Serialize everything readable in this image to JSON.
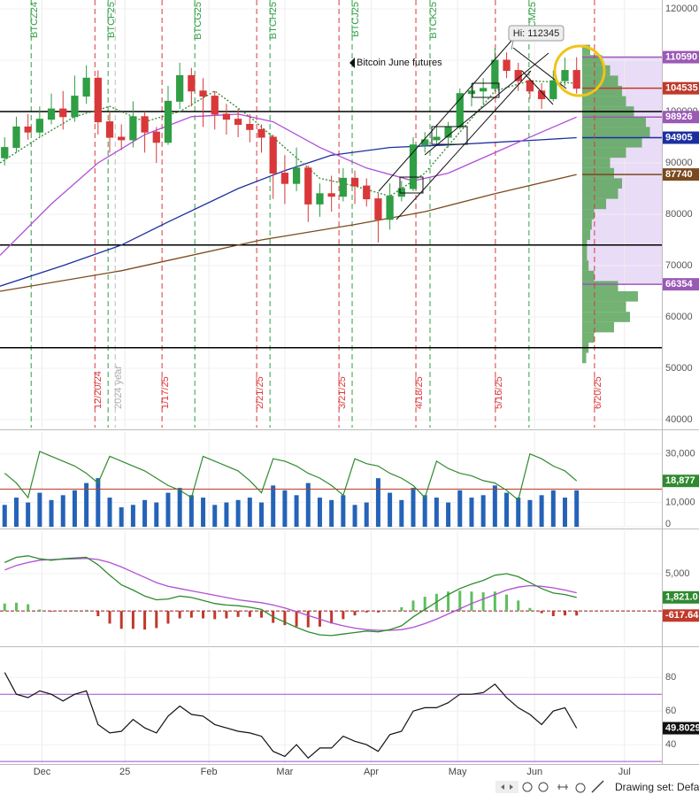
{
  "chart_data": [
    {
      "type": "candlestick",
      "xlim": [
        -0.4,
        56.3
      ],
      "xticks": [
        {
          "value": 3.2,
          "label": "Dec"
        },
        {
          "value": 10.3,
          "label": "25"
        },
        {
          "value": 17.5,
          "label": "Feb"
        },
        {
          "value": 24,
          "label": "Mar"
        },
        {
          "value": 31.4,
          "label": "Apr"
        },
        {
          "value": 38.8,
          "label": "May"
        },
        {
          "value": 45.4,
          "label": "Jun"
        },
        {
          "value": 53.1,
          "label": "Jul"
        }
      ],
      "ylim": [
        38450,
        121720
      ],
      "yticks": [
        40000,
        50000,
        60000,
        70000,
        80000,
        90000,
        100000,
        110000,
        120000
      ],
      "grid": true,
      "up_color": "#2f9e44",
      "down_color": "#d9383a",
      "open": [
        91000,
        93000,
        97000,
        96000,
        98500,
        100500,
        99000,
        103000,
        106500,
        98000,
        95000,
        94500,
        99000,
        96000,
        94000,
        102000,
        107000,
        104000,
        103000,
        99500,
        98500,
        97500,
        96500,
        95000,
        88000,
        86000,
        89000,
        82000,
        84000,
        83500,
        87000,
        85500,
        83000,
        79000,
        83500,
        85000,
        93500,
        94500,
        95000,
        97000,
        103500,
        104000,
        104500,
        110000,
        108000,
        106000,
        104000,
        102500,
        106000,
        108000
      ],
      "high": [
        95000,
        99000,
        99500,
        101000,
        103500,
        104000,
        107000,
        109000,
        108000,
        100000,
        97500,
        102000,
        100000,
        97000,
        105000,
        109500,
        108500,
        106500,
        104000,
        101500,
        100500,
        99500,
        97500,
        95500,
        91500,
        93000,
        89500,
        86000,
        87500,
        89000,
        88500,
        87000,
        84000,
        86000,
        86500,
        95000,
        96000,
        97500,
        98000,
        104500,
        105500,
        106500,
        112345,
        111500,
        109500,
        106500,
        105500,
        108000,
        110500,
        110590
      ],
      "low": [
        89500,
        92000,
        94500,
        95000,
        97500,
        96500,
        98000,
        101500,
        95500,
        92000,
        92500,
        93000,
        92000,
        90000,
        93500,
        100500,
        101000,
        97000,
        96500,
        95500,
        95000,
        94000,
        92000,
        83000,
        82000,
        84500,
        78500,
        79500,
        80500,
        82500,
        82000,
        81500,
        74500,
        77000,
        82500,
        84500,
        92000,
        93500,
        93000,
        96500,
        101000,
        101500,
        104000,
        106500,
        104000,
        102500,
        100500,
        102000,
        105000,
        103500
      ],
      "close": [
        93000,
        97000,
        96000,
        98500,
        100500,
        99000,
        103000,
        106500,
        98000,
        95000,
        94500,
        99000,
        96000,
        94000,
        102000,
        107000,
        104000,
        103000,
        99500,
        98500,
        97500,
        96500,
        95000,
        88000,
        86000,
        89000,
        82000,
        84000,
        83500,
        87000,
        85500,
        83000,
        79000,
        83500,
        85000,
        93500,
        94500,
        95000,
        97000,
        103500,
        104000,
        104500,
        110000,
        108000,
        106000,
        104000,
        102500,
        106000,
        108000,
        104535
      ],
      "overlays": [
        {
          "color": "#1c2fa0",
          "style": "solid",
          "x": [
            -0.4,
            5,
            10,
            14,
            20,
            24,
            28,
            33,
            38,
            42,
            46,
            49
          ],
          "values": [
            66000,
            70000,
            74000,
            78500,
            85000,
            88500,
            91500,
            93000,
            93500,
            94000,
            94500,
            94905
          ]
        },
        {
          "color": "#7a4a1e",
          "style": "solid",
          "x": [
            -0.4,
            10,
            22,
            30,
            36,
            42,
            49
          ],
          "values": [
            65000,
            69000,
            75000,
            78000,
            80500,
            84000,
            87740
          ]
        },
        {
          "color": "#b04fd6",
          "style": "solid",
          "x": [
            -0.4,
            4,
            8,
            12,
            16,
            20,
            23,
            27,
            31,
            35,
            38,
            42,
            46,
            49
          ],
          "values": [
            72000,
            82000,
            90000,
            95500,
            99000,
            99500,
            98000,
            93000,
            89000,
            86500,
            88000,
            92000,
            96000,
            98926
          ]
        },
        {
          "color": "#2f8a2f",
          "style": "dotted",
          "x": [
            -0.4,
            3,
            6,
            9,
            12,
            15,
            18,
            21,
            24,
            27,
            30,
            33,
            36,
            39,
            42,
            45,
            49
          ],
          "values": [
            90000,
            95000,
            99000,
            101000,
            98000,
            100000,
            104000,
            99000,
            93000,
            87000,
            85500,
            83500,
            88000,
            96000,
            104000,
            106000,
            105500
          ]
        }
      ],
      "hlines": [
        {
          "value": 100000,
          "color": "#000000"
        },
        {
          "value": 74000,
          "color": "#000000"
        },
        {
          "value": 54000,
          "color": "#000000"
        }
      ],
      "price_labels": [
        {
          "value": 110590,
          "color": "#9b59b6"
        },
        {
          "value": 104535,
          "color": "#c0392b"
        },
        {
          "value": 98926,
          "color": "#9b59b6"
        },
        {
          "value": 94905,
          "color": "#1c2fa0"
        },
        {
          "value": 87740,
          "color": "#7a4a1e"
        },
        {
          "value": 66354,
          "color": "#9b59b6"
        }
      ],
      "expiry_color": "#2f9e44",
      "expiries": [
        {
          "label": "BTCZ24",
          "x": 2.27
        },
        {
          "label": "BTCF25",
          "x": 8.86
        },
        {
          "label": "BTCG25",
          "x": 16.29
        },
        {
          "label": "BTCH25",
          "x": 22.73
        },
        {
          "label": "BTCJ25",
          "x": 29.77
        },
        {
          "label": "BTCK25",
          "x": 36.44
        },
        {
          "label": "BTCM25",
          "x": 44.92
        }
      ],
      "roll_color": "#d9383a",
      "rolls": [
        {
          "label": "12/20/24",
          "x": 7.73
        },
        {
          "label": "2024 year",
          "x": 9.47
        },
        {
          "label": "1/17/25",
          "x": 13.48
        },
        {
          "label": "2/21/25",
          "x": 21.59
        },
        {
          "label": "3/21/25",
          "x": 28.64
        },
        {
          "label": "4/18/25",
          "x": 35.23
        },
        {
          "label": "5/16/25",
          "x": 42.04
        },
        {
          "label": "6/20/25",
          "x": 50.53
        }
      ],
      "annotations": [
        {
          "text": "Bitcoin June futures"
        },
        {
          "text": "Hi: 112345"
        }
      ],
      "volume_profile": {
        "color": "#5aa55a",
        "prices": [
          52000,
          54000,
          56000,
          58000,
          60000,
          62000,
          64000,
          66000,
          68000,
          70000,
          72000,
          74000,
          76000,
          78000,
          80000,
          82000,
          84000,
          86000,
          88000,
          90000,
          92000,
          94000,
          96000,
          98000,
          100000,
          102000,
          104000,
          106000,
          108000,
          110000,
          112000
        ],
        "values": [
          5,
          8,
          15,
          40,
          60,
          55,
          70,
          45,
          15,
          8,
          6,
          6,
          10,
          12,
          15,
          30,
          45,
          50,
          40,
          35,
          55,
          75,
          85,
          80,
          65,
          55,
          50,
          45,
          35,
          25,
          10
        ]
      }
    },
    {
      "type": "volume",
      "ylim": [
        0,
        39000
      ],
      "yticks": [
        0,
        {
          "value": 10000,
          "label": "10,000"
        },
        {
          "value": 30000,
          "label": "30,000"
        }
      ],
      "color": "#2463b8",
      "values": [
        9000,
        12000,
        10000,
        14000,
        11000,
        13000,
        15000,
        18000,
        20000,
        12000,
        8000,
        9000,
        11000,
        10000,
        14000,
        16000,
        13000,
        12000,
        9000,
        10000,
        11000,
        12000,
        10000,
        17000,
        15000,
        13000,
        18000,
        12000,
        11000,
        13000,
        9000,
        10000,
        20000,
        14000,
        11000,
        16000,
        13000,
        12000,
        10000,
        15000,
        12000,
        13000,
        17000,
        14000,
        12000,
        11000,
        13000,
        15000,
        12000,
        15000
      ],
      "ref_line": {
        "value": 15500,
        "color": "#c0392b"
      },
      "open_interest": {
        "color": "#2f8a2f",
        "values": [
          22000,
          18000,
          12000,
          31000,
          29000,
          27000,
          25000,
          22000,
          18000,
          29000,
          27000,
          25000,
          23000,
          20000,
          17000,
          15000,
          12000,
          29000,
          27000,
          25000,
          23000,
          19000,
          14000,
          28000,
          27000,
          25000,
          22000,
          20000,
          17000,
          13000,
          28000,
          26000,
          25000,
          22000,
          20000,
          17000,
          12000,
          27000,
          24000,
          22000,
          21000,
          19000,
          18000,
          15000,
          11000,
          30000,
          28000,
          25000,
          23000,
          18877
        ],
        "value_labels": [
          null,
          null,
          null,
          null,
          null,
          null,
          null,
          null,
          null,
          null,
          null,
          null,
          null,
          null,
          null,
          null,
          null,
          null,
          null,
          null,
          null,
          null,
          null,
          null,
          null,
          null,
          null,
          null,
          null,
          null,
          null,
          null,
          null,
          null,
          null,
          null,
          null,
          null,
          null,
          null,
          null,
          null,
          null,
          null,
          null,
          null,
          null,
          null,
          null,
          "18,877"
        ]
      }
    },
    {
      "type": "macd",
      "ylim": [
        -4500,
        10700
      ],
      "yticks": [
        {
          "value": 5000,
          "label": "5,000"
        }
      ],
      "macd": {
        "color": "#2f8a2f",
        "values": [
          6500,
          7200,
          7400,
          7000,
          6800,
          7000,
          7100,
          7200,
          6200,
          4800,
          3500,
          2800,
          2000,
          1500,
          1600,
          2000,
          1800,
          1400,
          1000,
          800,
          700,
          500,
          200,
          -800,
          -1500,
          -2200,
          -2800,
          -3200,
          -3300,
          -3100,
          -2900,
          -2700,
          -2800,
          -2500,
          -2000,
          -800,
          200,
          1200,
          2200,
          3000,
          3600,
          4100,
          4800,
          5000,
          4600,
          3800,
          3000,
          2400,
          2200,
          1821
        ],
        "value_labels": [
          null,
          null,
          null,
          null,
          null,
          null,
          null,
          null,
          null,
          null,
          null,
          null,
          null,
          null,
          null,
          null,
          null,
          null,
          null,
          null,
          null,
          null,
          null,
          null,
          null,
          null,
          null,
          null,
          null,
          null,
          null,
          null,
          null,
          null,
          null,
          null,
          null,
          null,
          null,
          null,
          null,
          null,
          null,
          null,
          null,
          null,
          null,
          null,
          null,
          "1,821.0"
        ]
      },
      "signal": {
        "color": "#b04fd6",
        "values": [
          5500,
          6100,
          6500,
          6800,
          6900,
          6950,
          7000,
          7050,
          6900,
          6500,
          5900,
          5200,
          4500,
          3800,
          3300,
          3000,
          2700,
          2400,
          2100,
          1800,
          1500,
          1300,
          1100,
          800,
          400,
          -100,
          -600,
          -1100,
          -1600,
          -2000,
          -2300,
          -2500,
          -2600,
          -2600,
          -2500,
          -2200,
          -1700,
          -1100,
          -400,
          300,
          1000,
          1600,
          2200,
          2800,
          3200,
          3400,
          3300,
          3100,
          2800,
          2438.64
        ]
      },
      "histogram": {
        "up_color": "#5cc05c",
        "down_color": "#c0392b",
        "values": [
          1000,
          1100,
          900,
          200,
          -100,
          50,
          100,
          150,
          -700,
          -1700,
          -2400,
          -2400,
          -2500,
          -2300,
          -1700,
          -1000,
          -900,
          -1000,
          -1100,
          -1000,
          -800,
          -800,
          -900,
          -1600,
          -1900,
          -2100,
          -2200,
          -2100,
          -1700,
          -1100,
          -600,
          -200,
          -200,
          100,
          500,
          1400,
          1900,
          2300,
          2600,
          2700,
          2600,
          2500,
          2600,
          2200,
          1400,
          400,
          -300,
          -700,
          -600,
          -617.64
        ],
        "value_labels": [
          null,
          null,
          null,
          null,
          null,
          null,
          null,
          null,
          null,
          null,
          null,
          null,
          null,
          null,
          null,
          null,
          null,
          null,
          null,
          null,
          null,
          null,
          null,
          null,
          null,
          null,
          null,
          null,
          null,
          null,
          null,
          null,
          null,
          null,
          null,
          null,
          null,
          null,
          null,
          null,
          null,
          null,
          null,
          null,
          null,
          null,
          null,
          null,
          null,
          "-617.64"
        ]
      }
    },
    {
      "type": "line",
      "ylim": [
        29,
        97
      ],
      "yticks": [
        40,
        60,
        80
      ],
      "color": "#111111",
      "hline_color": "#9b4fd6",
      "hlines": [
        70,
        30
      ],
      "values": [
        83,
        70,
        68,
        72,
        70,
        66,
        70,
        72,
        52,
        47,
        48,
        55,
        50,
        47,
        57,
        63,
        58,
        57,
        52,
        50,
        48,
        47,
        45,
        36,
        33,
        40,
        32,
        38,
        38,
        45,
        42,
        40,
        36,
        46,
        48,
        60,
        62,
        62,
        65,
        70,
        70,
        71,
        76,
        68,
        62,
        58,
        52,
        60,
        62,
        49.8029
      ],
      "value_labels": [
        null,
        null,
        null,
        null,
        null,
        null,
        null,
        null,
        null,
        null,
        null,
        null,
        null,
        null,
        null,
        null,
        null,
        null,
        null,
        null,
        null,
        null,
        null,
        null,
        null,
        null,
        null,
        null,
        null,
        null,
        null,
        null,
        null,
        null,
        null,
        null,
        null,
        null,
        null,
        null,
        null,
        null,
        null,
        null,
        null,
        null,
        null,
        null,
        null,
        "49.8029"
      ]
    }
  ],
  "toolbar": {
    "text": "Drawing set: Defau"
  }
}
